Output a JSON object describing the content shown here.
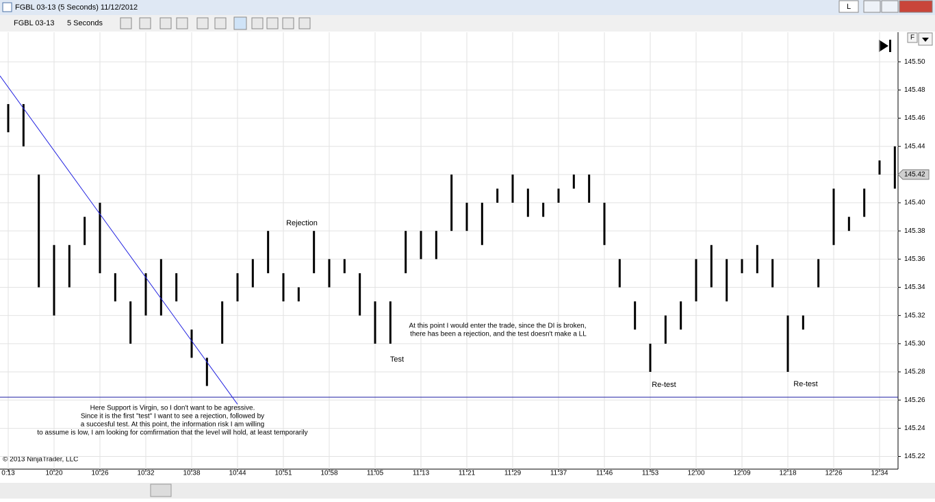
{
  "window": {
    "title": "FGBL 03-13 (5 Seconds)  11/12/2012",
    "link_button": "L"
  },
  "toolbar": {
    "instrument": "FGBL 03-13",
    "interval": "5 Seconds"
  },
  "chart_data": {
    "type": "range-bar",
    "xticks": [
      "0:13",
      "10:20",
      "10:26",
      "10:32",
      "10:38",
      "10:44",
      "10:51",
      "10:58",
      "11:05",
      "11:13",
      "11:21",
      "11:29",
      "11:37",
      "11:46",
      "11:53",
      "12:00",
      "12:09",
      "12:18",
      "12:26",
      "12:34"
    ],
    "low": [
      145.45,
      145.44,
      145.34,
      145.32,
      145.34,
      145.37,
      145.35,
      145.33,
      145.3,
      145.32,
      145.32,
      145.33,
      145.29,
      145.27,
      145.3,
      145.33,
      145.34,
      145.35,
      145.33,
      145.33,
      145.35,
      145.34,
      145.35,
      145.32,
      145.3,
      145.3,
      145.35,
      145.36,
      145.36,
      145.38,
      145.38,
      145.37,
      145.4,
      145.4,
      145.39,
      145.39,
      145.4,
      145.41,
      145.4,
      145.37,
      145.34,
      145.31,
      145.28,
      145.3,
      145.31,
      145.33,
      145.34,
      145.33,
      145.35,
      145.35,
      145.34,
      145.28,
      145.31,
      145.34,
      145.37,
      145.38,
      145.39,
      145.42,
      145.41
    ],
    "high": [
      145.47,
      145.47,
      145.42,
      145.37,
      145.37,
      145.39,
      145.4,
      145.35,
      145.33,
      145.35,
      145.36,
      145.35,
      145.31,
      145.29,
      145.33,
      145.35,
      145.36,
      145.38,
      145.35,
      145.34,
      145.38,
      145.36,
      145.36,
      145.35,
      145.33,
      145.33,
      145.38,
      145.38,
      145.38,
      145.42,
      145.4,
      145.4,
      145.41,
      145.42,
      145.41,
      145.4,
      145.41,
      145.42,
      145.42,
      145.4,
      145.36,
      145.33,
      145.3,
      145.32,
      145.33,
      145.36,
      145.37,
      145.36,
      145.36,
      145.37,
      145.36,
      145.32,
      145.32,
      145.36,
      145.41,
      145.39,
      145.41,
      145.43,
      145.44
    ],
    "ylim": [
      145.211,
      145.521
    ],
    "yticks": [
      145.22,
      145.24,
      145.26,
      145.28,
      {
        "value": 145.3,
        "label": "145.30"
      },
      145.32,
      145.34,
      145.36,
      145.38,
      {
        "value": 145.4,
        "label": "145.40"
      },
      145.42,
      145.44,
      145.46,
      145.48,
      {
        "value": 145.5,
        "label": "145.50"
      }
    ],
    "last_price": {
      "value": 145.42,
      "label": "145.42"
    },
    "horizontal_line": 145.262,
    "trend_line": [
      145.49,
      145.257
    ],
    "grid": true,
    "annotations": [
      "Rejection",
      "Test",
      "At this point I would enter the trade, since the DI is broken,",
      "there has been a rejection, and the test doesn't make a LL",
      "Re-test",
      "Re-test",
      "Here Support is Virgin, so I don't want to be agressive.",
      "Since it is the first \"test\" I want to see a rejection, followed by",
      "a succesful test. At this point, the information risk I am willing",
      "to assume is low, I am looking for comfirmation that the level will hold, at least temporarily"
    ],
    "copyright": "© 2013 NinjaTrader, LLC",
    "scale_button": "F"
  }
}
